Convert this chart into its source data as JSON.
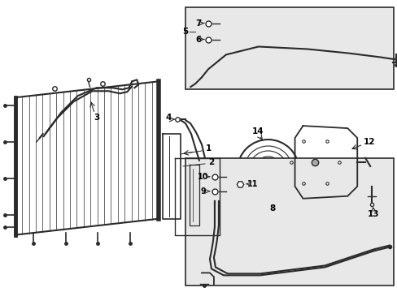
{
  "bg_color": "#ffffff",
  "line_color": "#2a2a2a",
  "box_fill": "#e8e8e8",
  "fig_width": 4.89,
  "fig_height": 3.6,
  "dpi": 100
}
